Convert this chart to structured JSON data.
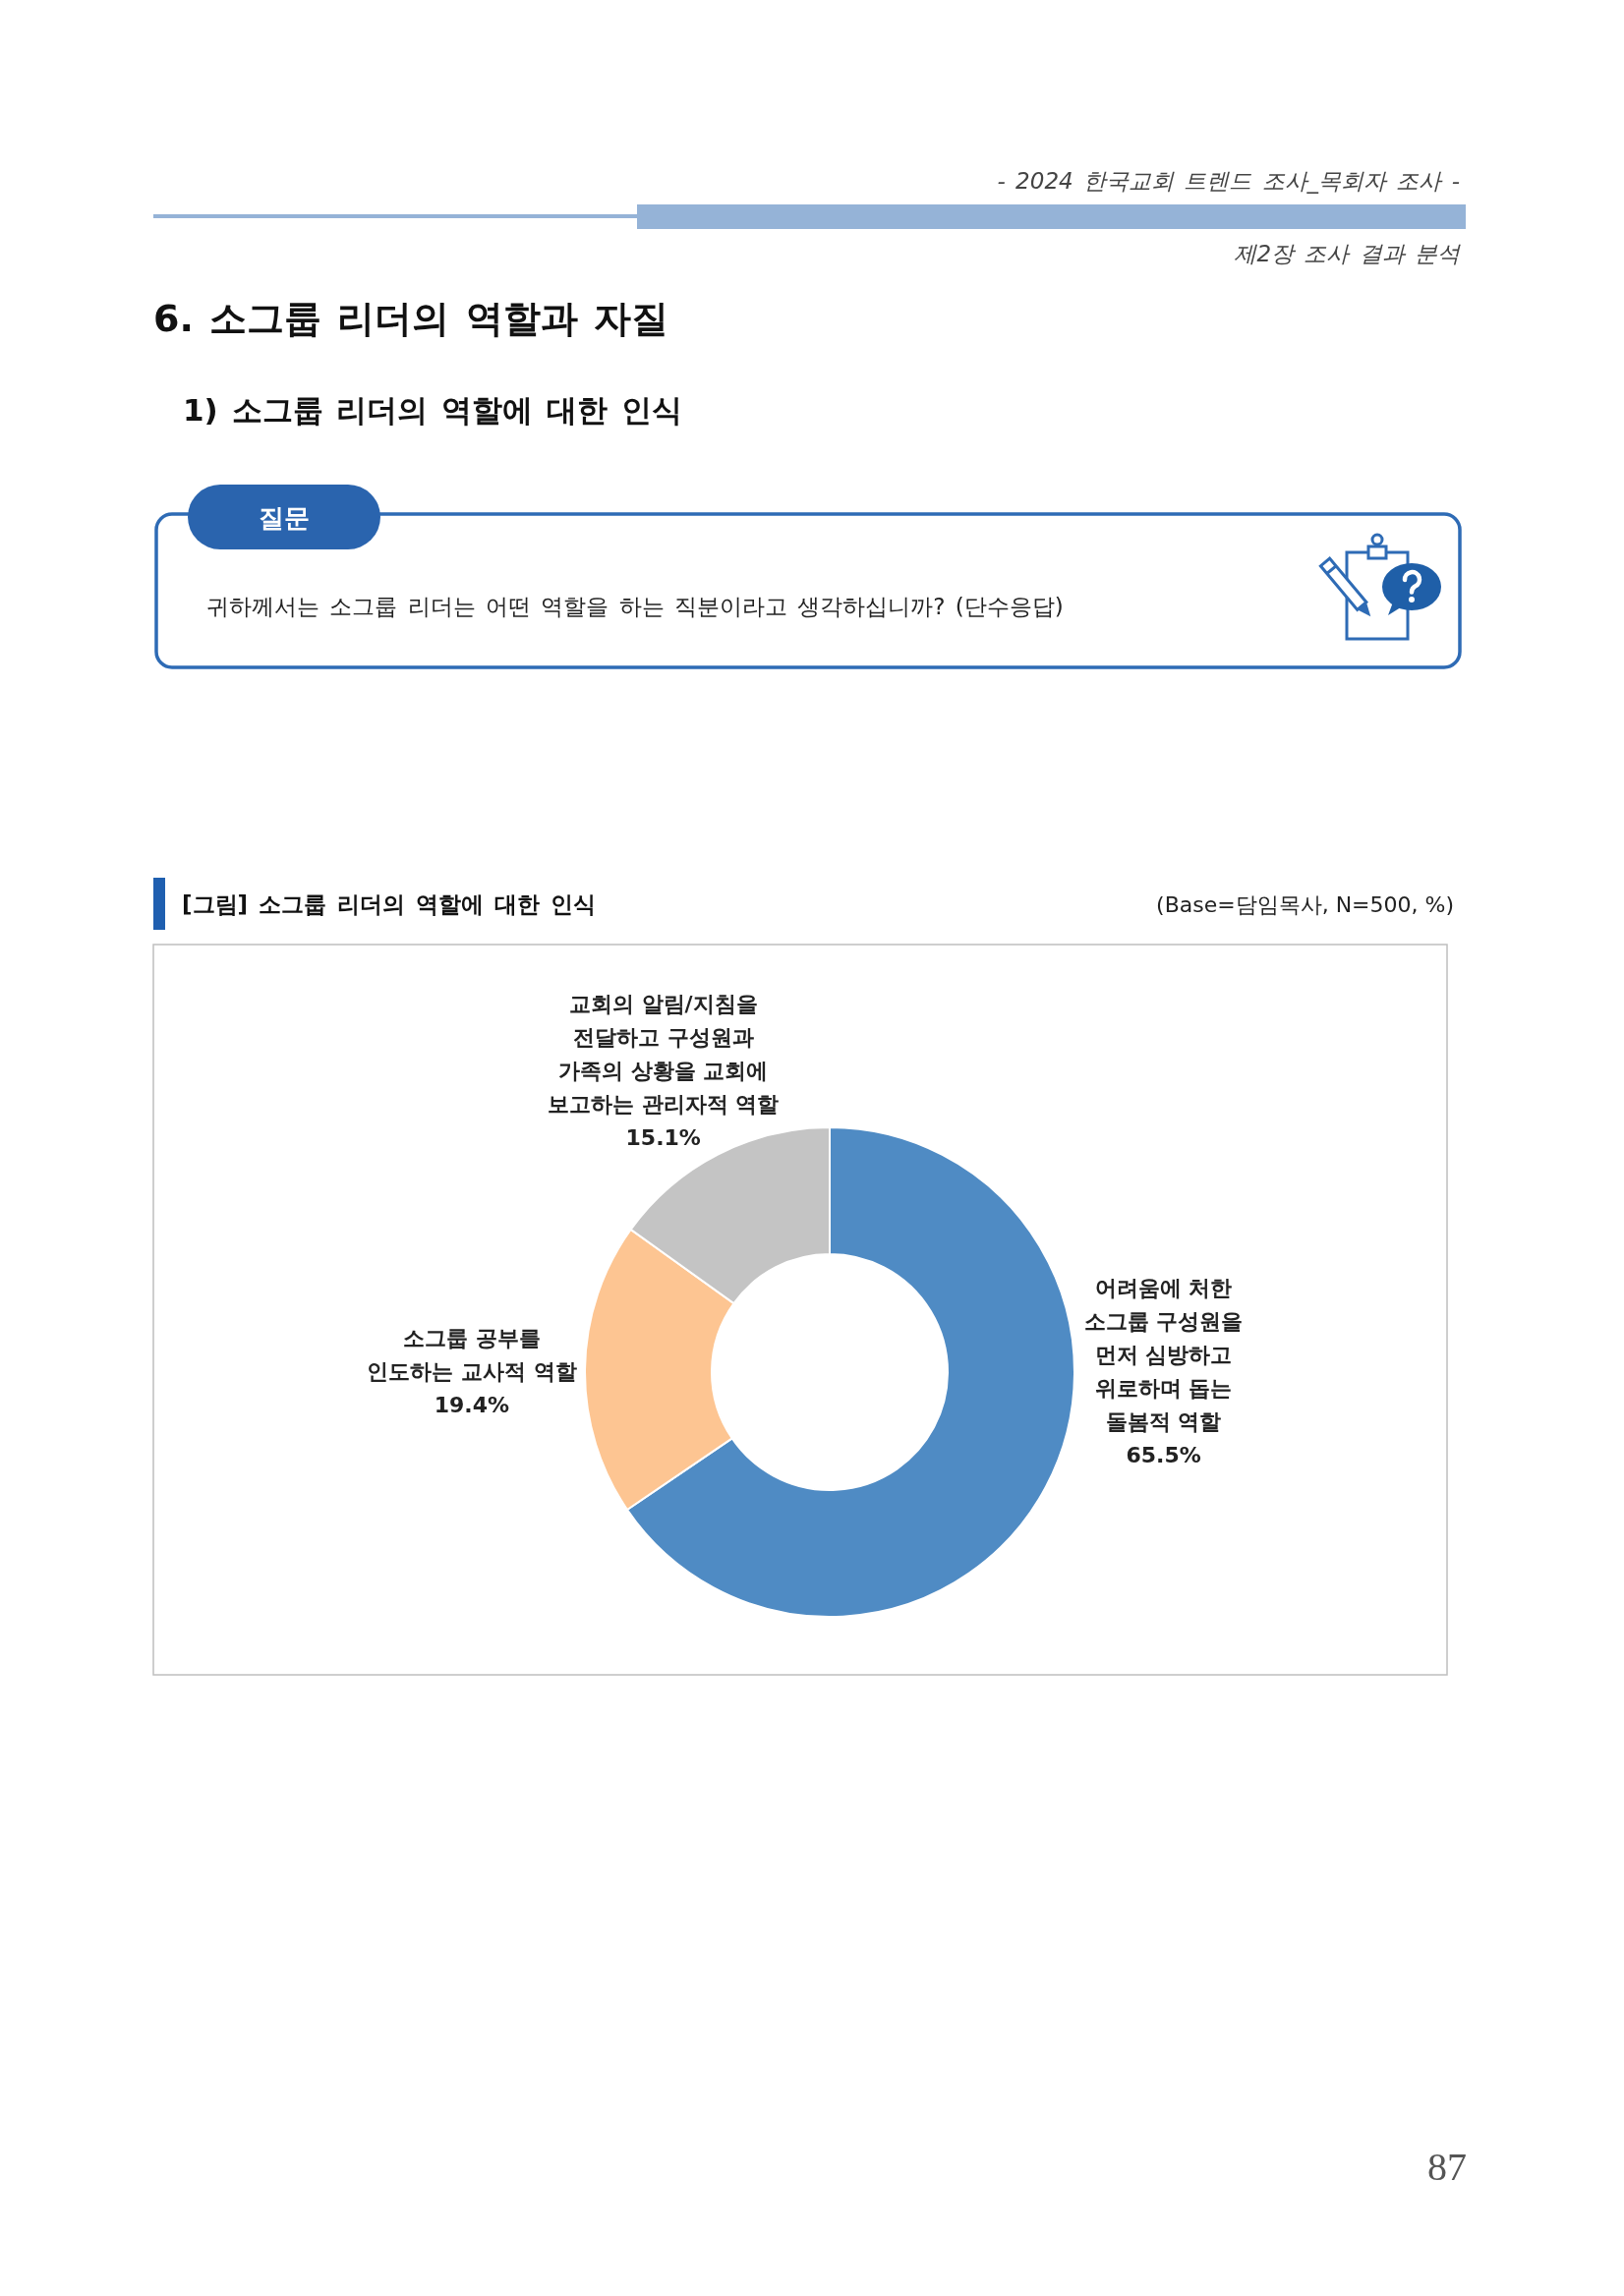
{
  "chart_data": {
    "type": "donut",
    "title": "[그림] 소그룹 리더의 역할에 대한 인식",
    "subtitle": "(Base=담임목사, N=500, %)",
    "categories": [
      "어려움에 처한\n소그룹 구성원을\n먼저 심방하고\n위로하며 돕는\n돌봄적 역할",
      "소그룹 공부를\n인도하는 교사적 역할",
      "교회의 알림/지침을\n전달하고 구성원과\n가족의 상황을 교회에\n보고하는 관리자적 역할"
    ],
    "values": [
      65.5,
      19.4,
      15.1
    ],
    "colors": [
      "#4f8bc4",
      "#fdc592",
      "#c4c4c4"
    ],
    "value_labels": [
      "65.5%",
      "19.4%",
      "15.1%"
    ],
    "annotations": [
      "- 2024 한국교회 트렌드 조사_목회자 조사 -",
      "제2장 조사 결과 분석",
      "6. 소그룹 리더의 역할과 자질",
      "1) 소그룹 리더의 역할에 대한 인식",
      "질문",
      "귀하께서는 소그룹 리더는 어떤 역할을 하는 직분이라고 생각하십니까? (단수응답)",
      "87"
    ]
  }
}
